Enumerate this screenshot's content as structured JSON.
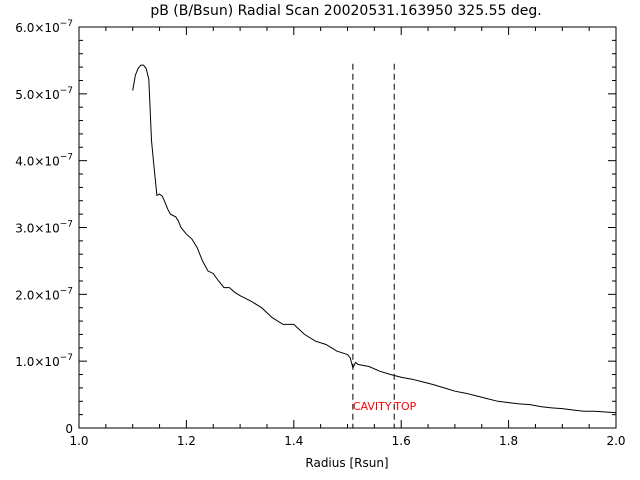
{
  "chart_data": {
    "type": "line",
    "title": "pB (B/Bsun) Radial Scan 20020531.163950 325.55 deg.",
    "xlabel": "Radius [Rsun]",
    "ylabel": "",
    "xlim": [
      1.0,
      2.0
    ],
    "ylim": [
      0,
      6e-07
    ],
    "x_ticks": [
      {
        "value": 1.0,
        "label": "1.0"
      },
      {
        "value": 1.2,
        "label": "1.2"
      },
      {
        "value": 1.4,
        "label": "1.4"
      },
      {
        "value": 1.6,
        "label": "1.6"
      },
      {
        "value": 1.8,
        "label": "1.8"
      },
      {
        "value": 2.0,
        "label": "2.0"
      }
    ],
    "y_ticks": [
      {
        "value": 0,
        "mantissa": "0",
        "exponent": ""
      },
      {
        "value": 1e-07,
        "mantissa": "1.0×10",
        "exponent": "−7"
      },
      {
        "value": 2e-07,
        "mantissa": "2.0×10",
        "exponent": "−7"
      },
      {
        "value": 3e-07,
        "mantissa": "3.0×10",
        "exponent": "−7"
      },
      {
        "value": 4e-07,
        "mantissa": "4.0×10",
        "exponent": "−7"
      },
      {
        "value": 5e-07,
        "mantissa": "5.0×10",
        "exponent": "−7"
      },
      {
        "value": 6e-07,
        "mantissa": "6.0×10",
        "exponent": "−7"
      }
    ],
    "grid": false,
    "series": [
      {
        "x": [
          1.1,
          1.105,
          1.11,
          1.115,
          1.12,
          1.125,
          1.13,
          1.135,
          1.14,
          1.145,
          1.15,
          1.155,
          1.16,
          1.165,
          1.17,
          1.175,
          1.18,
          1.185,
          1.19,
          1.195,
          1.2,
          1.21,
          1.22,
          1.23,
          1.24,
          1.25,
          1.26,
          1.27,
          1.28,
          1.29,
          1.3,
          1.32,
          1.34,
          1.36,
          1.38,
          1.4,
          1.42,
          1.44,
          1.46,
          1.48,
          1.5,
          1.505,
          1.51,
          1.515,
          1.52,
          1.54,
          1.56,
          1.58,
          1.6,
          1.62,
          1.64,
          1.66,
          1.68,
          1.7,
          1.72,
          1.74,
          1.76,
          1.78,
          1.8,
          1.82,
          1.84,
          1.86,
          1.88,
          1.9,
          1.92,
          1.94,
          1.96,
          1.98,
          2.0
        ],
        "y": [
          5.05e-07,
          5.28e-07,
          5.38e-07,
          5.43e-07,
          5.43e-07,
          5.38e-07,
          5.22e-07,
          4.3e-07,
          3.88e-07,
          3.48e-07,
          3.5e-07,
          3.47e-07,
          3.38e-07,
          3.28e-07,
          3.2e-07,
          3.18e-07,
          3.16e-07,
          3.1e-07,
          3e-07,
          2.95e-07,
          2.9e-07,
          2.83e-07,
          2.7e-07,
          2.5e-07,
          2.35e-07,
          2.31e-07,
          2.2e-07,
          2.1e-07,
          2.1e-07,
          2.03e-07,
          1.98e-07,
          1.9e-07,
          1.8e-07,
          1.65e-07,
          1.55e-07,
          1.55e-07,
          1.4e-07,
          1.3e-07,
          1.25e-07,
          1.15e-07,
          1.1e-07,
          1.05e-07,
          9e-08,
          9.8e-08,
          9.5e-08,
          9.2e-08,
          8.5e-08,
          8e-08,
          7.6e-08,
          7.3e-08,
          6.9e-08,
          6.5e-08,
          6e-08,
          5.5e-08,
          5.2e-08,
          4.8e-08,
          4.4e-08,
          4e-08,
          3.8e-08,
          3.6e-08,
          3.5e-08,
          3.2e-08,
          3e-08,
          2.9e-08,
          2.7e-08,
          2.5e-08,
          2.5e-08,
          2.4e-08,
          2.3e-08
        ]
      }
    ],
    "reference_lines": [
      {
        "x": 1.51,
        "y_top": 5.45e-07,
        "label": "CAVITY"
      },
      {
        "x": 1.587,
        "y_top": 5.45e-07,
        "label": "TOP"
      }
    ],
    "annotation_y": 3.3e-08,
    "colors": {
      "line": "#000000",
      "annotation": "#ff0000",
      "background": "#ffffff"
    }
  }
}
